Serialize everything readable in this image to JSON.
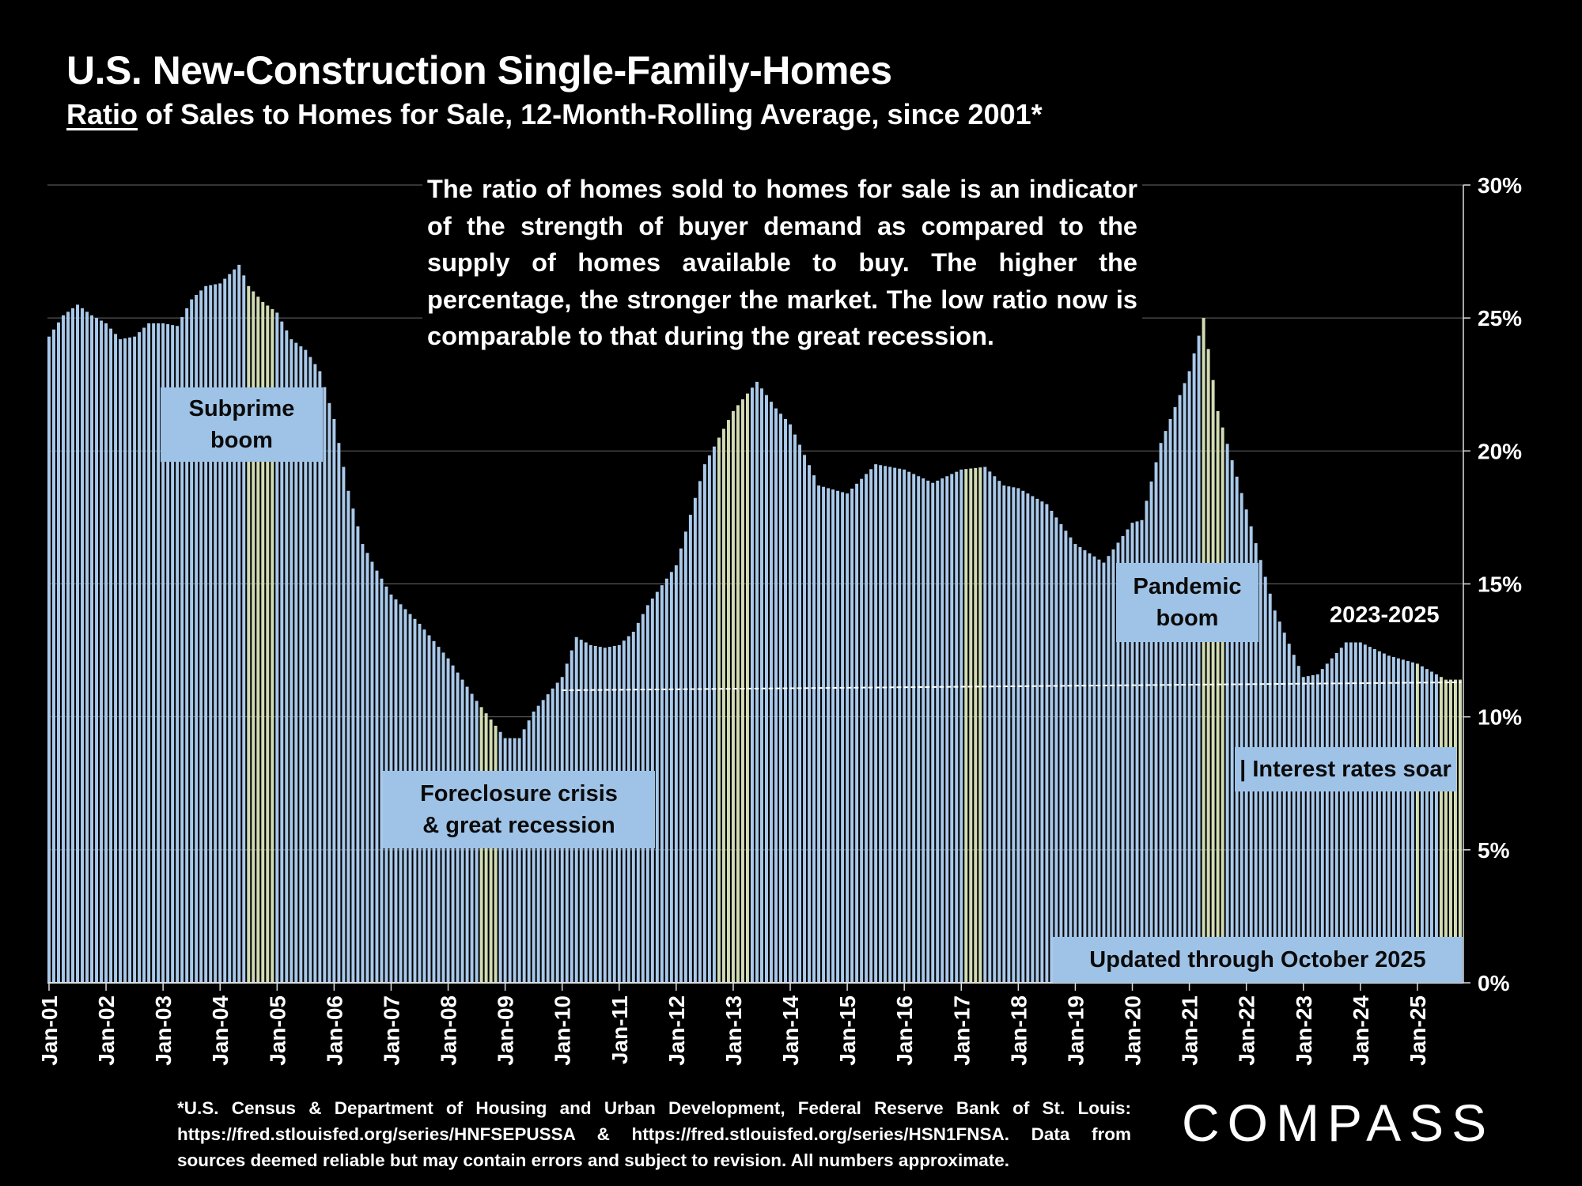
{
  "title": "U.S. New-Construction Single-Family-Homes",
  "subtitle_underlined": "Ratio",
  "subtitle_rest": " of Sales to Homes for Sale, 12-Month-Rolling Average, since 2001*",
  "description": "The ratio of homes sold to homes for sale is an indicator of the strength of buyer demand as compared to the supply of homes available to buy. The higher the percentage, the stronger the market. The low ratio now is comparable to that during the great recession.",
  "annotations": {
    "subprime_line1": "Subprime",
    "subprime_line2": "boom",
    "foreclosure_line1": "Foreclosure crisis",
    "foreclosure_line2": "& great recession",
    "pandemic_line1": "Pandemic",
    "pandemic_line2": "boom",
    "period_2023_2025": "2023-2025",
    "interest_rates": "| Interest rates soar",
    "updated": "Updated through October 2025"
  },
  "footnote": "*U.S. Census & Department of Housing and Urban Development, Federal Reserve Bank of St. Louis: https://fred.stlouisfed.org/series/HNFSEPUSSA & https://fred.stlouisfed.org/series/HSN1FNSA. Data from sources deemed reliable but may contain errors and subject to revision. All numbers approximate.",
  "logo": "COMPASS",
  "colors": {
    "background": "#000000",
    "bar": "#a9c9ea",
    "bar_highlight": "#d2dcb4",
    "annotation_box": "#9fc3e7",
    "grid": "#6a6a6a",
    "text": "#ffffff"
  },
  "chart_data": {
    "type": "bar",
    "x_tick_labels": [
      "Jan-01",
      "Jan-02",
      "Jan-03",
      "Jan-04",
      "Jan-05",
      "Jan-06",
      "Jan-07",
      "Jan-08",
      "Jan-09",
      "Jan-10",
      "Jan-11",
      "Jan-12",
      "Jan-13",
      "Jan-14",
      "Jan-15",
      "Jan-16",
      "Jan-17",
      "Jan-18",
      "Jan-19",
      "Jan-20",
      "Jan-21",
      "Jan-22",
      "Jan-23",
      "Jan-24",
      "Jan-25"
    ],
    "y_tick_labels": [
      "0%",
      "5%",
      "10%",
      "15%",
      "20%",
      "25%",
      "30%"
    ],
    "ylim": [
      0,
      30
    ],
    "y_axis_position": "right",
    "grid": true,
    "start_month": "Jan-01",
    "end_month": "Oct-25",
    "anchors": [
      {
        "month": "Jan-01",
        "value": 24.3
      },
      {
        "month": "Apr-01",
        "value": 25.1
      },
      {
        "month": "Jul-01",
        "value": 25.5
      },
      {
        "month": "Oct-01",
        "value": 25.1
      },
      {
        "month": "Jan-02",
        "value": 24.8
      },
      {
        "month": "Apr-02",
        "value": 24.2
      },
      {
        "month": "Jul-02",
        "value": 24.3
      },
      {
        "month": "Oct-02",
        "value": 24.8
      },
      {
        "month": "Jan-03",
        "value": 24.8
      },
      {
        "month": "Apr-03",
        "value": 24.7
      },
      {
        "month": "Jul-03",
        "value": 25.7
      },
      {
        "month": "Oct-03",
        "value": 26.2
      },
      {
        "month": "Jan-04",
        "value": 26.3
      },
      {
        "month": "May-04",
        "value": 27.0
      },
      {
        "month": "Jul-04",
        "value": 26.2
      },
      {
        "month": "Oct-04",
        "value": 25.6
      },
      {
        "month": "Jan-05",
        "value": 25.2
      },
      {
        "month": "Apr-05",
        "value": 24.2
      },
      {
        "month": "Jul-05",
        "value": 23.8
      },
      {
        "month": "Oct-05",
        "value": 23.0
      },
      {
        "month": "Jan-06",
        "value": 21.2
      },
      {
        "month": "Apr-06",
        "value": 18.5
      },
      {
        "month": "Jul-06",
        "value": 16.5
      },
      {
        "month": "Oct-06",
        "value": 15.5
      },
      {
        "month": "Jan-07",
        "value": 14.6
      },
      {
        "month": "Jul-07",
        "value": 13.5
      },
      {
        "month": "Jan-08",
        "value": 12.2
      },
      {
        "month": "Jul-08",
        "value": 10.6
      },
      {
        "month": "Jan-09",
        "value": 9.2
      },
      {
        "month": "Apr-09",
        "value": 9.2
      },
      {
        "month": "Jul-09",
        "value": 10.2
      },
      {
        "month": "Jan-10",
        "value": 11.5
      },
      {
        "month": "Apr-10",
        "value": 13.0
      },
      {
        "month": "Jul-10",
        "value": 12.7
      },
      {
        "month": "Oct-10",
        "value": 12.6
      },
      {
        "month": "Jan-11",
        "value": 12.7
      },
      {
        "month": "Apr-11",
        "value": 13.2
      },
      {
        "month": "Jul-11",
        "value": 14.2
      },
      {
        "month": "Jan-12",
        "value": 15.7
      },
      {
        "month": "Jul-12",
        "value": 19.5
      },
      {
        "month": "Jan-13",
        "value": 21.5
      },
      {
        "month": "Jun-13",
        "value": 22.6
      },
      {
        "month": "Oct-13",
        "value": 21.6
      },
      {
        "month": "Jan-14",
        "value": 21.0
      },
      {
        "month": "Jul-14",
        "value": 18.7
      },
      {
        "month": "Jan-15",
        "value": 18.4
      },
      {
        "month": "Jul-15",
        "value": 19.5
      },
      {
        "month": "Jan-16",
        "value": 19.3
      },
      {
        "month": "Jul-16",
        "value": 18.8
      },
      {
        "month": "Jan-17",
        "value": 19.3
      },
      {
        "month": "Jun-17",
        "value": 19.4
      },
      {
        "month": "Oct-17",
        "value": 18.7
      },
      {
        "month": "Jan-18",
        "value": 18.6
      },
      {
        "month": "Jul-18",
        "value": 18.0
      },
      {
        "month": "Jan-19",
        "value": 16.5
      },
      {
        "month": "Jul-19",
        "value": 15.8
      },
      {
        "month": "Jan-20",
        "value": 17.3
      },
      {
        "month": "Mar-20",
        "value": 17.4
      },
      {
        "month": "Jul-20",
        "value": 20.3
      },
      {
        "month": "Jan-21",
        "value": 23.0
      },
      {
        "month": "Apr-21",
        "value": 25.0
      },
      {
        "month": "Jul-21",
        "value": 21.5
      },
      {
        "month": "Jan-22",
        "value": 17.8
      },
      {
        "month": "Jul-22",
        "value": 14.0
      },
      {
        "month": "Jan-23",
        "value": 11.5
      },
      {
        "month": "Apr-23",
        "value": 11.6
      },
      {
        "month": "Oct-23",
        "value": 12.8
      },
      {
        "month": "Jan-24",
        "value": 12.8
      },
      {
        "month": "Jul-24",
        "value": 12.3
      },
      {
        "month": "Jan-25",
        "value": 12.0
      },
      {
        "month": "Jul-25",
        "value": 11.4
      },
      {
        "month": "Oct-25",
        "value": 11.4
      }
    ],
    "highlighted_months": [
      "Jul-04",
      "Aug-04",
      "Sep-04",
      "Oct-04",
      "Nov-04",
      "Dec-04",
      "Aug-08",
      "Sep-08",
      "Oct-08",
      "Nov-08",
      "Oct-12",
      "Nov-12",
      "Dec-12",
      "Jan-13",
      "Feb-13",
      "Mar-13",
      "Apr-13",
      "Feb-17",
      "Mar-17",
      "Apr-17",
      "May-17",
      "Apr-21",
      "May-21",
      "Jun-21",
      "Jul-21",
      "Aug-21",
      "Jan-25",
      "Jun-25",
      "Jul-25",
      "Aug-25",
      "Sep-25",
      "Oct-25"
    ],
    "trend_line": {
      "style": "dashed",
      "from": {
        "month": "Jan-10",
        "value": 11.0
      },
      "to": {
        "month": "Oct-25",
        "value": 11.3
      }
    }
  }
}
